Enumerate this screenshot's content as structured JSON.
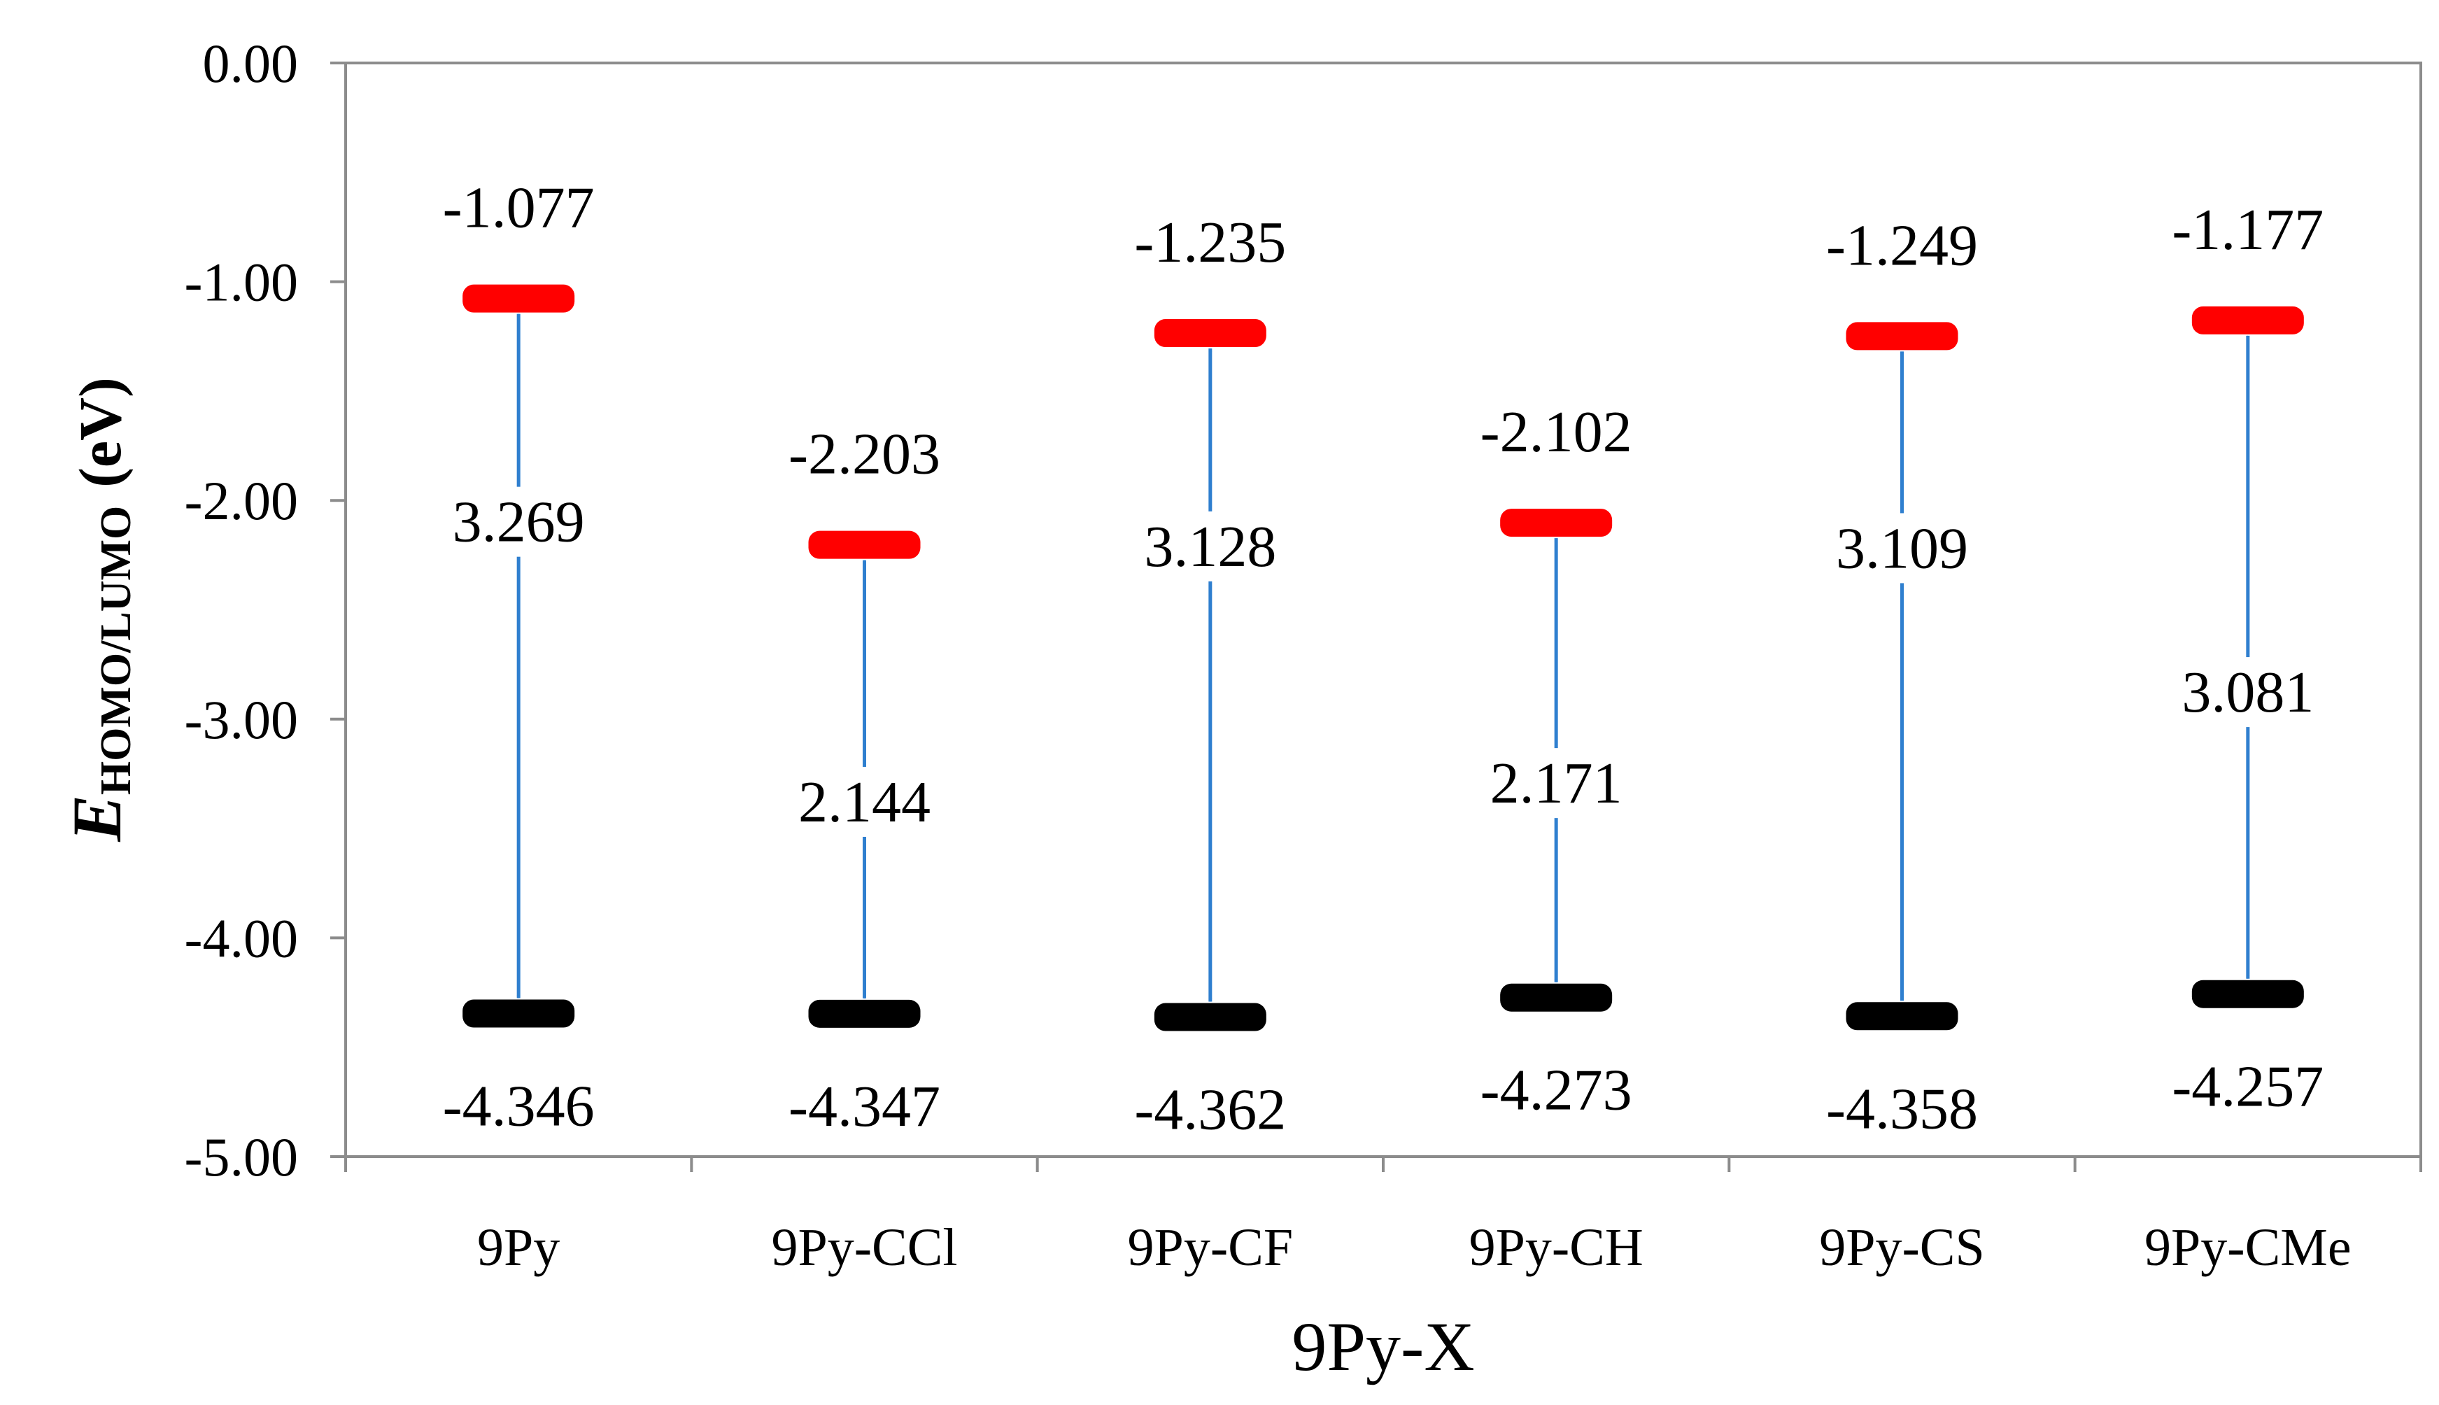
{
  "chart_data": {
    "type": "energy-level",
    "title": "",
    "xlabel": "9Py-X",
    "ylabel": {
      "symbol": "E",
      "subscript": "HOMO/LUMO",
      "unit": "(eV)"
    },
    "ylim": [
      -5.0,
      0.0
    ],
    "yticks": [
      0,
      -1,
      -2,
      -3,
      -4,
      -5
    ],
    "ytick_labels": [
      "0.00",
      "-1.00",
      "-2.00",
      "-3.00",
      "-4.00",
      "-5.00"
    ],
    "categories": [
      "9Py",
      "9Py-CCl",
      "9Py-CF",
      "9Py-CH",
      "9Py-CS",
      "9Py-CMe"
    ],
    "series": [
      {
        "name": "LUMO",
        "color": "#ff0000",
        "values": [
          -1.077,
          -2.203,
          -1.235,
          -2.102,
          -1.249,
          -1.177
        ],
        "labels": [
          "-1.077",
          "-2.203",
          "-1.235",
          "-2.102",
          "-1.249",
          "-1.177"
        ]
      },
      {
        "name": "HOMO",
        "color": "#000000",
        "values": [
          -4.346,
          -4.347,
          -4.362,
          -4.273,
          -4.358,
          -4.257
        ],
        "labels": [
          "-4.346",
          "-4.347",
          "-4.362",
          "-4.273",
          "-4.358",
          "-4.257"
        ]
      }
    ],
    "gaps": {
      "color": "#2f7fcf",
      "values": [
        3.269,
        2.144,
        3.128,
        2.171,
        3.109,
        3.081
      ],
      "labels": [
        "3.269",
        "2.144",
        "3.128",
        "2.171",
        "3.109",
        "3.081"
      ]
    },
    "grid": false,
    "legend": "none"
  }
}
